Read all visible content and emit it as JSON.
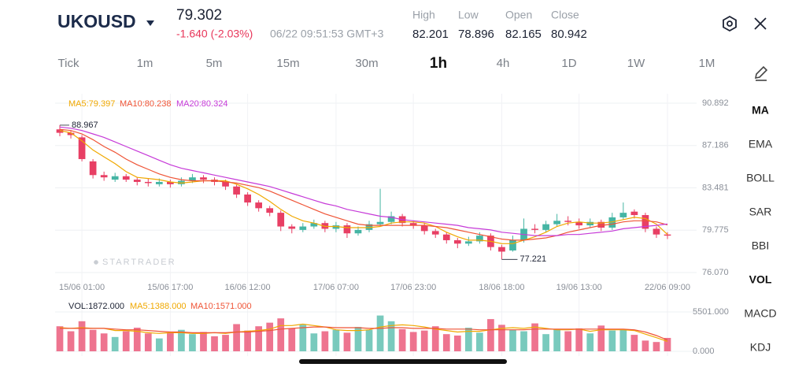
{
  "header": {
    "symbol": "UKOUSD",
    "price": 79.302,
    "change": "-1.640 (-2.03%)",
    "time": "06/22 09:51:53 GMT+3",
    "stats": [
      {
        "label": "High",
        "value": 82.201
      },
      {
        "label": "Low",
        "value": 78.896
      },
      {
        "label": "Open",
        "value": 82.165
      },
      {
        "label": "Close",
        "value": 80.942
      }
    ]
  },
  "timeframes": [
    "Tick",
    "1m",
    "5m",
    "15m",
    "30m",
    "1h",
    "4h",
    "1D",
    "1W",
    "1M"
  ],
  "indicators": [
    "MA",
    "EMA",
    "BOLL",
    "SAR",
    "BBI",
    "VOL",
    "MACD",
    "KDJ"
  ],
  "chart_data": {
    "type": "candlestick",
    "watermark": "STARTRADER",
    "up_color": "#45b5a4",
    "down_color": "#e83f64",
    "grid": true,
    "xlim": [
      0,
      55
    ],
    "ylim": [
      76.07,
      90.892
    ],
    "yticks": [
      {
        "value": 76.07,
        "label": "76.070"
      },
      79.775,
      83.481,
      87.186,
      90.892
    ],
    "xticks": [
      {
        "value": 2,
        "label": "15/06 01:00"
      },
      {
        "value": 10,
        "label": "15/06 17:00"
      },
      {
        "value": 17,
        "label": "16/06 12:00"
      },
      {
        "value": 25,
        "label": "17/06 07:00"
      },
      {
        "value": 32,
        "label": "17/06 23:00"
      },
      {
        "value": 40,
        "label": "18/06 18:00"
      },
      {
        "value": 47,
        "label": "19/06 13:00"
      },
      {
        "value": 55,
        "label": "22/06 09:00"
      }
    ],
    "open": [
      88.6,
      88.3,
      87.9,
      85.8,
      84.6,
      84.2,
      84.5,
      84.2,
      84.0,
      83.8,
      84.0,
      83.8,
      84.1,
      84.4,
      84.2,
      84.0,
      83.6,
      82.9,
      82.2,
      81.7,
      81.3,
      80.1,
      79.8,
      80.1,
      80.4,
      79.9,
      80.2,
      79.5,
      79.8,
      80.3,
      80.5,
      81.0,
      80.4,
      80.2,
      79.7,
      79.4,
      78.9,
      78.6,
      78.8,
      79.3,
      78.3,
      78.0,
      78.9,
      79.9,
      79.8,
      80.3,
      80.6,
      80.5,
      80.2,
      80.5,
      80.0,
      80.9,
      81.4,
      81.1,
      79.9,
      79.4
    ],
    "high": [
      88.967,
      88.5,
      88.1,
      86.0,
      84.9,
      84.8,
      84.7,
      84.4,
      84.3,
      84.3,
      84.2,
      84.4,
      84.7,
      84.6,
      84.4,
      84.2,
      83.8,
      83.1,
      82.4,
      81.9,
      81.5,
      80.3,
      80.4,
      80.7,
      80.6,
      80.5,
      80.4,
      80.1,
      80.6,
      83.4,
      81.4,
      81.2,
      80.6,
      80.4,
      79.9,
      79.6,
      79.1,
      79.2,
      79.6,
      79.5,
      78.5,
      79.3,
      80.8,
      80.3,
      80.6,
      81.2,
      81.0,
      80.8,
      80.8,
      80.7,
      81.3,
      82.2,
      81.6,
      81.3,
      80.1,
      79.6
    ],
    "low": [
      88.0,
      87.8,
      85.8,
      84.3,
      84.1,
      84.0,
      84.0,
      83.7,
      83.6,
      83.6,
      83.5,
      83.6,
      83.9,
      83.9,
      83.7,
      83.3,
      82.6,
      81.9,
      81.4,
      81.0,
      79.7,
      79.5,
      79.6,
      79.9,
      79.6,
      79.6,
      79.1,
      79.3,
      79.6,
      80.1,
      80.3,
      80.1,
      79.9,
      79.4,
      79.1,
      78.6,
      78.2,
      78.4,
      78.6,
      78.0,
      77.221,
      77.9,
      78.7,
      79.5,
      79.6,
      80.1,
      80.2,
      79.9,
      80.0,
      79.7,
      79.8,
      80.7,
      80.8,
      79.6,
      79.1,
      79.0
    ],
    "close": [
      88.3,
      88.1,
      86.0,
      84.6,
      84.4,
      84.5,
      84.2,
      84.0,
      83.9,
      84.0,
      83.8,
      84.1,
      84.4,
      84.2,
      84.0,
      83.6,
      82.9,
      82.2,
      81.7,
      81.3,
      80.1,
      79.9,
      80.1,
      80.4,
      79.9,
      80.2,
      79.5,
      79.8,
      80.3,
      80.5,
      81.0,
      80.4,
      80.2,
      79.7,
      79.4,
      78.9,
      78.6,
      78.8,
      79.3,
      78.3,
      77.9,
      78.9,
      79.9,
      79.8,
      80.3,
      80.6,
      80.5,
      80.2,
      80.5,
      80.0,
      80.9,
      81.3,
      81.1,
      79.9,
      79.4,
      79.3
    ],
    "series": [
      {
        "label": "MA5:79.397",
        "color": "#f0a800",
        "values": [
          88.5,
          88.3,
          87.6,
          86.8,
          86.2,
          85.6,
          84.9,
          84.4,
          84.3,
          84.2,
          84.0,
          83.9,
          84.0,
          84.1,
          84.1,
          84.1,
          83.8,
          83.4,
          82.9,
          82.3,
          81.6,
          81.0,
          80.6,
          80.4,
          80.1,
          80.1,
          80.0,
          80.0,
          80.0,
          80.1,
          80.4,
          80.5,
          80.5,
          80.4,
          80.1,
          79.6,
          79.2,
          78.9,
          78.9,
          78.8,
          78.6,
          78.6,
          78.9,
          79.2,
          79.6,
          80.1,
          80.4,
          80.5,
          80.4,
          80.4,
          80.5,
          80.7,
          80.9,
          80.8,
          80.3,
          79.397
        ]
      },
      {
        "label": "MA10:80.238",
        "color": "#ef5436",
        "values": [
          88.6,
          88.5,
          88.2,
          87.7,
          87.1,
          86.6,
          86.0,
          85.5,
          85.1,
          84.7,
          84.4,
          84.2,
          84.1,
          84.1,
          84.1,
          84.0,
          83.9,
          83.7,
          83.5,
          83.2,
          82.8,
          82.4,
          82.0,
          81.6,
          81.2,
          80.9,
          80.6,
          80.3,
          80.2,
          80.2,
          80.2,
          80.2,
          80.2,
          80.2,
          80.1,
          80.0,
          79.8,
          79.6,
          79.4,
          79.2,
          79.0,
          78.9,
          78.9,
          79.0,
          79.1,
          79.3,
          79.6,
          79.8,
          80.0,
          80.2,
          80.3,
          80.5,
          80.6,
          80.6,
          80.5,
          80.238
        ]
      },
      {
        "label": "MA20:80.324",
        "color": "#c63ad8",
        "values": [
          88.8,
          88.7,
          88.5,
          88.2,
          87.9,
          87.5,
          87.1,
          86.7,
          86.3,
          85.9,
          85.5,
          85.2,
          85.0,
          84.8,
          84.6,
          84.4,
          84.2,
          84.0,
          83.8,
          83.6,
          83.3,
          83.0,
          82.7,
          82.4,
          82.1,
          81.9,
          81.6,
          81.4,
          81.2,
          81.0,
          80.9,
          80.7,
          80.6,
          80.5,
          80.4,
          80.3,
          80.2,
          80.0,
          79.9,
          79.8,
          79.6,
          79.5,
          79.4,
          79.3,
          79.3,
          79.3,
          79.4,
          79.4,
          79.5,
          79.6,
          79.7,
          79.9,
          80.0,
          80.1,
          80.2,
          80.324
        ]
      }
    ],
    "volume": {
      "label": "VOL:1872.000",
      "ylim": [
        0,
        5501
      ],
      "yticks": [
        {
          "value": 5501,
          "label": "5501.000"
        },
        {
          "value": 0,
          "label": "0.000"
        }
      ],
      "values": [
        3500,
        2800,
        4200,
        3000,
        2500,
        2000,
        2800,
        3300,
        2500,
        1800,
        2600,
        3000,
        2400,
        2700,
        2100,
        2300,
        3800,
        2900,
        3500,
        4000,
        4600,
        3200,
        3700,
        2500,
        2800,
        3000,
        2600,
        3400,
        3000,
        5000,
        4200,
        3100,
        2700,
        2900,
        3500,
        2400,
        2200,
        3300,
        2600,
        4500,
        3700,
        3000,
        2800,
        3900,
        2400,
        3100,
        2800,
        3200,
        2500,
        3600,
        2900,
        3000,
        2300,
        1500,
        1300,
        1872
      ],
      "series": [
        {
          "label": "MA5:1388.000",
          "color": "#f0a800",
          "values": [
            3300,
            3200,
            3300,
            3200,
            3200,
            2900,
            2900,
            2800,
            2600,
            2500,
            2600,
            2600,
            2500,
            2500,
            2600,
            2500,
            2700,
            2800,
            2900,
            3100,
            3600,
            3600,
            3800,
            3600,
            3400,
            3000,
            2900,
            2900,
            3000,
            3400,
            3600,
            3700,
            3600,
            3400,
            3100,
            2900,
            2700,
            2800,
            2800,
            3000,
            3200,
            3300,
            3200,
            3400,
            3200,
            3000,
            3000,
            3100,
            2800,
            3000,
            3000,
            3000,
            2900,
            2400,
            1900,
            1388
          ]
        },
        {
          "label": "MA10:1571.000",
          "color": "#ef5436",
          "values": [
            3200,
            3200,
            3200,
            3200,
            3200,
            3100,
            3000,
            3000,
            2900,
            2800,
            2700,
            2700,
            2600,
            2600,
            2600,
            2600,
            2700,
            2700,
            2800,
            2900,
            3100,
            3200,
            3300,
            3400,
            3400,
            3300,
            3300,
            3300,
            3200,
            3200,
            3300,
            3300,
            3200,
            3200,
            3200,
            3100,
            3100,
            3100,
            3000,
            3000,
            3000,
            3000,
            3000,
            3100,
            3100,
            3100,
            3100,
            3100,
            3100,
            3100,
            3100,
            3100,
            3000,
            2700,
            2200,
            1571
          ]
        }
      ]
    }
  }
}
